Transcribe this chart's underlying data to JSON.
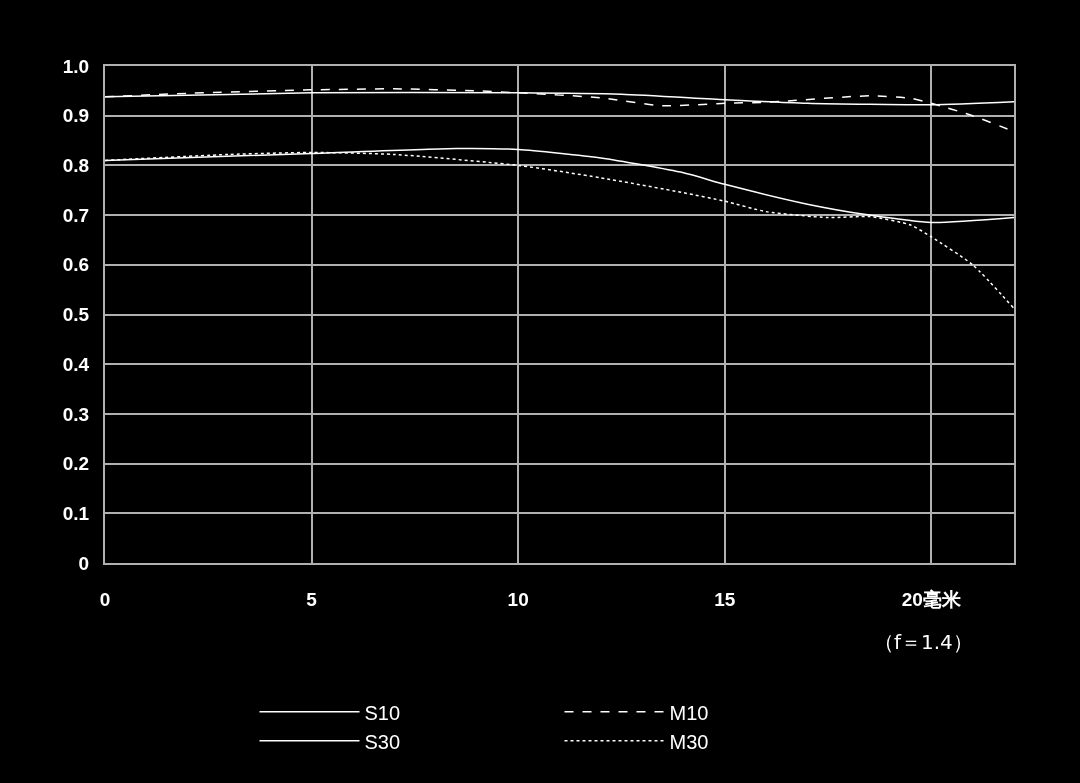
{
  "chart_data": {
    "type": "line",
    "annotations": [
      "（f＝1.4）"
    ],
    "series": [
      {
        "name": "S10",
        "color": "#ffffff",
        "line_style": "solid",
        "x": [
          0,
          5,
          10,
          12.5,
          15,
          17,
          20,
          22
        ],
        "values": [
          0.938,
          0.946,
          0.946,
          0.943,
          0.932,
          0.925,
          0.922,
          0.928
        ]
      },
      {
        "name": "M10",
        "color": "#ffffff",
        "line_style": "dashed",
        "x": [
          0,
          2,
          5,
          7,
          9,
          10,
          12,
          13.5,
          15,
          16,
          18.5,
          19.5,
          20,
          21,
          22
        ],
        "values": [
          0.938,
          0.945,
          0.952,
          0.954,
          0.95,
          0.946,
          0.936,
          0.92,
          0.925,
          0.927,
          0.94,
          0.935,
          0.925,
          0.9,
          0.868
        ]
      },
      {
        "name": "S30",
        "color": "#ffffff",
        "line_style": "solid",
        "x": [
          0,
          5,
          8.5,
          10,
          12,
          14,
          15,
          17,
          18.5,
          20,
          22
        ],
        "values": [
          0.81,
          0.824,
          0.834,
          0.832,
          0.815,
          0.785,
          0.762,
          0.722,
          0.7,
          0.685,
          0.695
        ]
      },
      {
        "name": "M30",
        "color": "#ffffff",
        "line_style": "dotted",
        "x": [
          0,
          3,
          5,
          7,
          10,
          12,
          14,
          15,
          16,
          17.5,
          18.5,
          19.5,
          20,
          21,
          22
        ],
        "values": [
          0.81,
          0.822,
          0.826,
          0.822,
          0.8,
          0.775,
          0.745,
          0.728,
          0.707,
          0.695,
          0.697,
          0.68,
          0.656,
          0.6,
          0.512
        ]
      }
    ],
    "xlim": [
      0,
      22
    ],
    "xticks": [
      0,
      5,
      10,
      15,
      {
        "value": 20,
        "label": "20毫米"
      }
    ],
    "ylim": [
      0,
      1
    ],
    "yticks": [
      0,
      0.1,
      0.2,
      0.3,
      0.4,
      0.5,
      0.6,
      0.7,
      0.8,
      0.9,
      {
        "value": 1,
        "label": "1.0"
      }
    ],
    "grid": true,
    "legend": "bottom"
  }
}
